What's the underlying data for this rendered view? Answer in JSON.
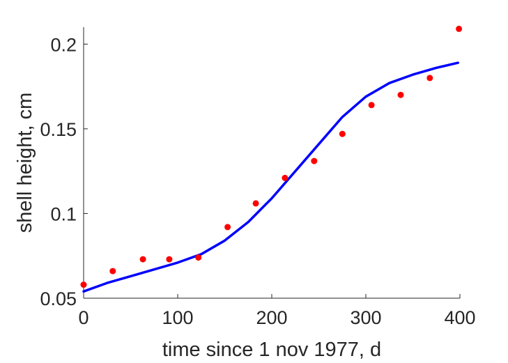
{
  "chart_data": {
    "type": "scatter",
    "title": "",
    "xlabel": "time since 1 nov 1977, d",
    "ylabel": "shell height, cm",
    "xlim": [
      0,
      400
    ],
    "ylim": [
      0.05,
      0.21
    ],
    "xticks": [
      0,
      100,
      200,
      300,
      400
    ],
    "xtick_labels": [
      "0",
      "100",
      "200",
      "300",
      "400"
    ],
    "yticks": [
      0.05,
      0.1,
      0.15,
      0.2
    ],
    "ytick_labels": [
      "0.05",
      "0.1",
      "0.15",
      "0.2"
    ],
    "grid": false,
    "series": [
      {
        "kind": "points",
        "color": "#ff0000",
        "x": [
          0,
          31,
          63,
          91,
          122,
          153,
          183,
          214,
          245,
          275,
          306,
          337,
          368,
          399
        ],
        "y": [
          0.058,
          0.066,
          0.073,
          0.073,
          0.074,
          0.092,
          0.106,
          0.121,
          0.131,
          0.147,
          0.164,
          0.17,
          0.18,
          0.209
        ]
      },
      {
        "kind": "line",
        "color": "#0000ff",
        "x": [
          0,
          25,
          50,
          75,
          100,
          125,
          150,
          175,
          200,
          225,
          250,
          275,
          300,
          325,
          350,
          375,
          398
        ],
        "y": [
          0.054,
          0.059,
          0.063,
          0.067,
          0.071,
          0.076,
          0.084,
          0.095,
          0.109,
          0.125,
          0.141,
          0.157,
          0.169,
          0.177,
          0.182,
          0.186,
          0.189
        ]
      }
    ]
  }
}
